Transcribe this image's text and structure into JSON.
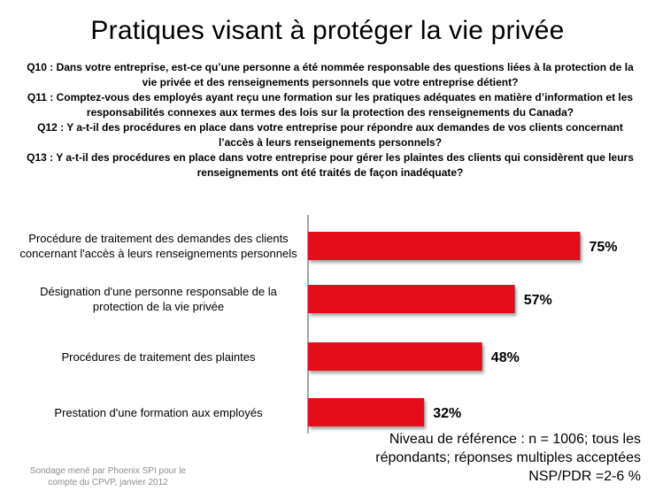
{
  "title": "Pratiques visant à protéger la vie privée",
  "questions": [
    "Q10 : Dans votre entreprise, est-ce qu’une personne a été nommée responsable des questions liées à la protection de la vie privée et des renseignements personnels que votre entreprise détient?",
    "Q11 : Comptez-vous des employés ayant reçu une formation sur les pratiques adéquates en matière d’information et les responsabilités connexes aux termes des lois sur la protection des renseignements du Canada?",
    "Q12 : Y a-t-il des procédures en place dans votre entreprise pour répondre aux demandes de vos clients concernant l’accès à leurs renseignements personnels?",
    "Q13 : Y a-t-il des procédures en place dans votre entreprise pour gérer les plaintes des clients qui considèrent que leurs renseignements ont été traités de façon inadéquate?"
  ],
  "chart_data": {
    "type": "bar",
    "orientation": "horizontal",
    "categories": [
      "Procédure de traitement des demandes des clients concernant l'accès à leurs renseignements personnels",
      "Désignation d'une personne responsable de la protection de la vie privée",
      "Procédures de traitement des plaintes",
      "Prestation d'une formation aux employés"
    ],
    "values": [
      75,
      57,
      48,
      32
    ],
    "value_labels": [
      "75%",
      "57%",
      "48%",
      "32%"
    ],
    "xlim": [
      0,
      100
    ],
    "bar_color": "#e3111b",
    "axis_color": "#878787",
    "grid": false
  },
  "base_note": [
    "Niveau de référence : n = 1006;  tous les",
    "répondants; réponses multiples acceptées",
    "NSP/PDR =2-6  %"
  ],
  "footnote": "Sondage mené par Phoenix SPI pour le compte du CPVP, janvier 2012"
}
